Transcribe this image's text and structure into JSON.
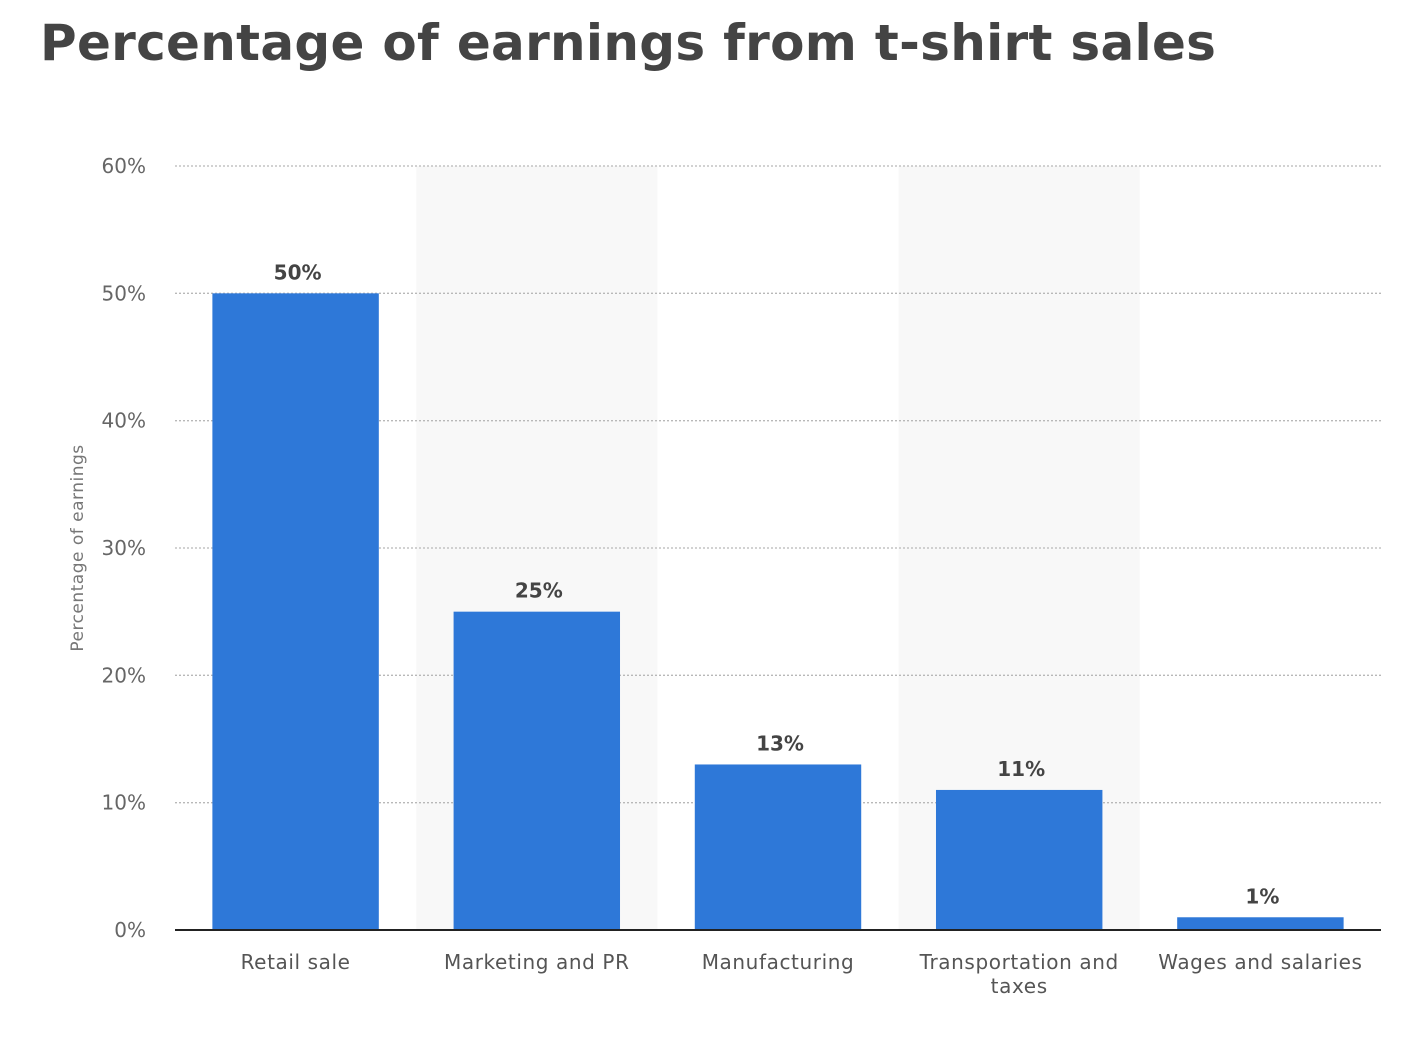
{
  "chart_data": {
    "type": "bar",
    "title": "Percentage of earnings from t-shirt sales",
    "ylabel": "Percentage of earnings",
    "xlabel": "",
    "categories": [
      "Retail sale",
      "Marketing and PR",
      "Manufacturing",
      "Transportation and taxes",
      "Wages and salaries"
    ],
    "values": [
      50,
      25,
      13,
      11,
      1
    ],
    "data_labels": [
      "50%",
      "25%",
      "13%",
      "11%",
      "1%"
    ],
    "ylim": [
      0,
      60
    ],
    "yticks": [
      0,
      10,
      20,
      30,
      40,
      50,
      60
    ],
    "ytick_labels": [
      "0%",
      "10%",
      "20%",
      "30%",
      "40%",
      "50%",
      "60%"
    ],
    "grid": true,
    "bar_color": "#2e78d8",
    "alternate_band_color": "#f8f8f8"
  }
}
